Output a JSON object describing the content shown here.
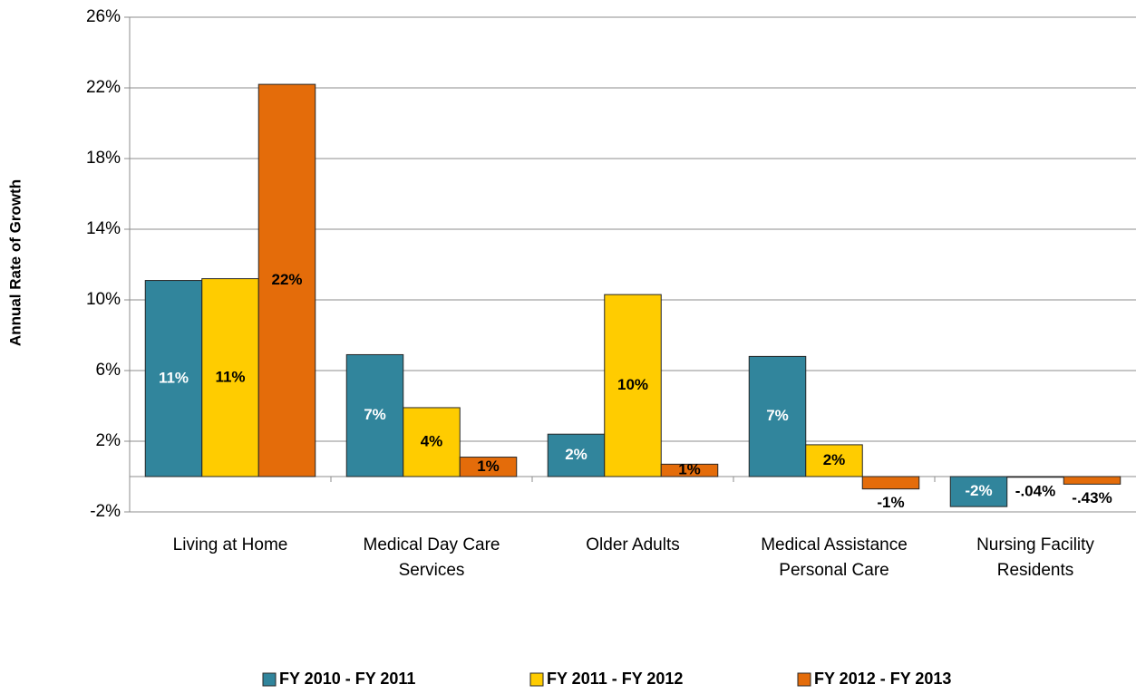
{
  "chart_data": {
    "type": "bar",
    "y_label": "Annual Rate of Growth",
    "categories": [
      "Living at Home",
      "Medical Day Care Services",
      "Older Adults",
      "Medical Assistance Personal Care",
      "Nursing Facility Residents"
    ],
    "series": [
      {
        "name": "FY 2010 - FY 2011",
        "color": "#31859c",
        "label_color": "#ffffff",
        "values": [
          11.1,
          6.9,
          2.4,
          6.8,
          -1.7
        ],
        "value_labels": [
          "11%",
          "7%",
          "2%",
          "7%",
          "-2%"
        ]
      },
      {
        "name": "FY 2011 - FY 2012",
        "color": "#ffcc00",
        "label_color": "#000000",
        "values": [
          11.2,
          3.9,
          10.3,
          1.8,
          -0.04
        ],
        "value_labels": [
          "11%",
          "4%",
          "10%",
          "2%",
          "-.04%"
        ]
      },
      {
        "name": "FY 2012 - FY 2013",
        "color": "#e46c0a",
        "label_color": "#000000",
        "values": [
          22.2,
          1.1,
          0.7,
          -0.7,
          -0.43
        ],
        "value_labels": [
          "22%",
          "1%",
          "1%",
          "-1%",
          "-.43%"
        ]
      }
    ],
    "ylim": [
      -2,
      26
    ],
    "yticks": [
      {
        "value": -2,
        "label": "-2%"
      },
      {
        "value": 2,
        "label": "2%"
      },
      {
        "value": 6,
        "label": "6%"
      },
      {
        "value": 10,
        "label": "10%"
      },
      {
        "value": 14,
        "label": "14%"
      },
      {
        "value": 18,
        "label": "18%"
      },
      {
        "value": 22,
        "label": "22%"
      },
      {
        "value": 26,
        "label": "26%"
      }
    ],
    "grid": true,
    "legend": "bottom"
  }
}
